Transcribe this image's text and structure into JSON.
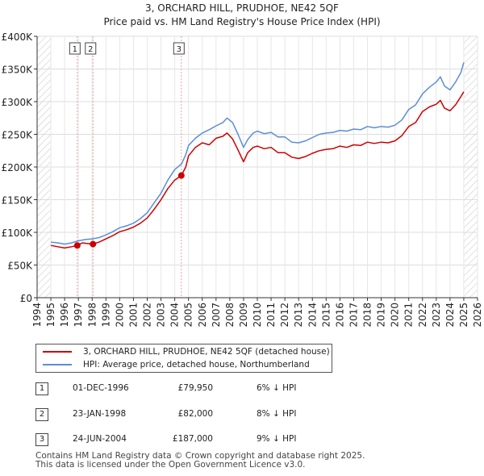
{
  "chart_data": {
    "type": "line",
    "title": "3, ORCHARD HILL, PRUDHOE, NE42 5QF",
    "subtitle": "Price paid vs. HM Land Registry's House Price Index (HPI)",
    "xlim": [
      1994,
      2026
    ],
    "ylim": [
      0,
      400000
    ],
    "x_ticks": [
      1994,
      1995,
      1996,
      1997,
      1998,
      1999,
      2000,
      2001,
      2002,
      2003,
      2004,
      2005,
      2006,
      2007,
      2008,
      2009,
      2010,
      2011,
      2012,
      2013,
      2014,
      2015,
      2016,
      2017,
      2018,
      2019,
      2020,
      2021,
      2022,
      2023,
      2024,
      2025,
      2026
    ],
    "y_ticks": [
      {
        "value": 0,
        "label": "£0"
      },
      {
        "value": 50000,
        "label": "£50K"
      },
      {
        "value": 100000,
        "label": "£100K"
      },
      {
        "value": 150000,
        "label": "£150K"
      },
      {
        "value": 200000,
        "label": "£200K"
      },
      {
        "value": 250000,
        "label": "£250K"
      },
      {
        "value": 300000,
        "label": "£300K"
      },
      {
        "value": 350000,
        "label": "£350K"
      },
      {
        "value": 400000,
        "label": "£400K"
      }
    ],
    "hatch_before": 1995,
    "hatch_after": 2025,
    "colors": {
      "property": "#cc0000",
      "hpi": "#5b8ed6",
      "sale_line": "#e8a0a0",
      "hatch": "#cccccc"
    },
    "series": [
      {
        "name": "3, ORCHARD HILL, PRUDHOE, NE42 5QF (detached house)",
        "key": "property",
        "x": [
          1995.0,
          1995.5,
          1996.0,
          1996.5,
          1996.92,
          1997.3,
          1997.6,
          1998.06,
          1998.5,
          1999.0,
          1999.5,
          2000.0,
          2000.5,
          2001.0,
          2001.5,
          2002.0,
          2002.5,
          2003.0,
          2003.5,
          2004.0,
          2004.48,
          2004.8,
          2005.0,
          2005.5,
          2006.0,
          2006.5,
          2007.0,
          2007.5,
          2007.8,
          2008.2,
          2008.6,
          2009.0,
          2009.3,
          2009.7,
          2010.0,
          2010.5,
          2011.0,
          2011.5,
          2012.0,
          2012.5,
          2013.0,
          2013.5,
          2014.0,
          2014.5,
          2015.0,
          2015.5,
          2016.0,
          2016.5,
          2017.0,
          2017.5,
          2018.0,
          2018.5,
          2019.0,
          2019.5,
          2020.0,
          2020.5,
          2021.0,
          2021.5,
          2022.0,
          2022.5,
          2023.0,
          2023.3,
          2023.6,
          2024.0,
          2024.4,
          2024.8,
          2025.0
        ],
        "y": [
          80000,
          78000,
          76000,
          78000,
          79950,
          84000,
          83000,
          82000,
          85000,
          90000,
          95000,
          101000,
          104000,
          108000,
          114000,
          122000,
          135000,
          150000,
          167000,
          180000,
          187000,
          200000,
          217000,
          230000,
          237000,
          234000,
          244000,
          247000,
          252000,
          243000,
          226000,
          208000,
          222000,
          230000,
          232000,
          228000,
          230000,
          222000,
          222000,
          215000,
          213000,
          216000,
          221000,
          225000,
          227000,
          228000,
          232000,
          230000,
          234000,
          233000,
          238000,
          236000,
          238000,
          237000,
          240000,
          248000,
          262000,
          268000,
          285000,
          292000,
          296000,
          302000,
          290000,
          286000,
          295000,
          308000,
          315000
        ]
      },
      {
        "name": "HPI: Average price, detached house, Northumberland",
        "key": "hpi",
        "x": [
          1995.0,
          1995.5,
          1996.0,
          1996.5,
          1997.0,
          1997.5,
          1998.0,
          1998.5,
          1999.0,
          1999.5,
          2000.0,
          2000.5,
          2001.0,
          2001.5,
          2002.0,
          2002.5,
          2003.0,
          2003.5,
          2004.0,
          2004.5,
          2004.8,
          2005.0,
          2005.5,
          2006.0,
          2006.5,
          2007.0,
          2007.5,
          2007.8,
          2008.2,
          2008.6,
          2009.0,
          2009.3,
          2009.7,
          2010.0,
          2010.5,
          2011.0,
          2011.5,
          2012.0,
          2012.5,
          2013.0,
          2013.5,
          2014.0,
          2014.5,
          2015.0,
          2015.5,
          2016.0,
          2016.5,
          2017.0,
          2017.5,
          2018.0,
          2018.5,
          2019.0,
          2019.5,
          2020.0,
          2020.5,
          2021.0,
          2021.5,
          2022.0,
          2022.5,
          2023.0,
          2023.3,
          2023.6,
          2024.0,
          2024.4,
          2024.8,
          2025.0
        ],
        "y": [
          85000,
          84000,
          82000,
          84000,
          87000,
          89000,
          90000,
          92000,
          96000,
          101000,
          107000,
          110000,
          114000,
          121000,
          130000,
          145000,
          160000,
          180000,
          196000,
          205000,
          219000,
          233000,
          244000,
          252000,
          257000,
          263000,
          268000,
          275000,
          268000,
          250000,
          230000,
          242000,
          252000,
          255000,
          251000,
          253000,
          246000,
          246000,
          238000,
          237000,
          240000,
          245000,
          250000,
          252000,
          253000,
          256000,
          255000,
          258000,
          257000,
          262000,
          260000,
          262000,
          261000,
          264000,
          272000,
          288000,
          295000,
          312000,
          322000,
          330000,
          338000,
          324000,
          318000,
          330000,
          345000,
          360000
        ]
      }
    ],
    "sales": [
      {
        "label": "1",
        "x": 1996.92,
        "y": 79950
      },
      {
        "label": "2",
        "x": 1998.06,
        "y": 82000
      },
      {
        "label": "3",
        "x": 2004.48,
        "y": 187000
      }
    ]
  },
  "legend": {
    "property_label": "3, ORCHARD HILL, PRUDHOE, NE42 5QF (detached house)",
    "hpi_label": "HPI: Average price, detached house, Northumberland"
  },
  "transactions": [
    {
      "num": "1",
      "date": "01-DEC-1996",
      "price": "£79,950",
      "hpi": "6% ↓ HPI"
    },
    {
      "num": "2",
      "date": "23-JAN-1998",
      "price": "£82,000",
      "hpi": "8% ↓ HPI"
    },
    {
      "num": "3",
      "date": "24-JUN-2004",
      "price": "£187,000",
      "hpi": "9% ↓ HPI"
    }
  ],
  "footer": {
    "line1": "Contains HM Land Registry data © Crown copyright and database right 2025.",
    "line2": "This data is licensed under the Open Government Licence v3.0."
  }
}
